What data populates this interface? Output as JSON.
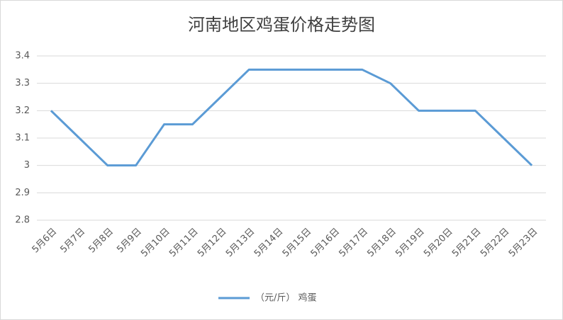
{
  "chart_data": {
    "type": "line",
    "title": "河南地区鸡蛋价格走势图",
    "categories": [
      "5月6日",
      "5月7日",
      "5月8日",
      "5月9日",
      "5月10日",
      "5月11日",
      "5月12日",
      "5月13日",
      "5月14日",
      "5月15日",
      "5月16日",
      "5月17日",
      "5月18日",
      "5月19日",
      "5月20日",
      "5月21日",
      "5月22日",
      "5月23日"
    ],
    "series": [
      {
        "name": "（元/斤） 鸡蛋",
        "color": "#5b9bd5",
        "values": [
          3.2,
          3.1,
          3.0,
          3.0,
          3.15,
          3.15,
          3.25,
          3.35,
          3.35,
          3.35,
          3.35,
          3.35,
          3.3,
          3.2,
          3.2,
          3.2,
          3.1,
          3.0
        ]
      }
    ],
    "ylim": [
      2.8,
      3.4
    ],
    "yticks": [
      2.8,
      2.9,
      3,
      3.1,
      3.2,
      3.3,
      3.4
    ],
    "grid": true,
    "legend": "bottom"
  }
}
